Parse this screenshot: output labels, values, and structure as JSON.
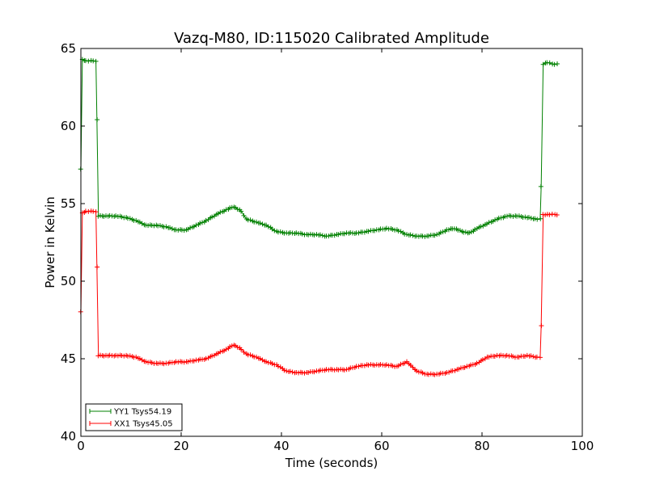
{
  "chart_data": {
    "type": "line",
    "title": "Vazq-M80, ID:115020 Calibrated Amplitude",
    "xlabel": "Time (seconds)",
    "ylabel": "Power in Kelvin",
    "xlim": [
      0,
      100
    ],
    "ylim": [
      40,
      65
    ],
    "xticks": [
      0,
      20,
      40,
      60,
      80,
      100
    ],
    "yticks": [
      40,
      45,
      50,
      55,
      60,
      65
    ],
    "grid": false,
    "legend_position": "lower-left",
    "marker": "+",
    "series": [
      {
        "name": "YY1 Tsys54.19",
        "color": "#008000",
        "points": [
          [
            0,
            57.2
          ],
          [
            0.3,
            64.3
          ],
          [
            1,
            64.2
          ],
          [
            2,
            64.2
          ],
          [
            3,
            64.2
          ],
          [
            3.2,
            60.4
          ],
          [
            3.5,
            54.2
          ],
          [
            5,
            54.2
          ],
          [
            7,
            54.2
          ],
          [
            9,
            54.1
          ],
          [
            11,
            53.9
          ],
          [
            13,
            53.6
          ],
          [
            15,
            53.6
          ],
          [
            17,
            53.5
          ],
          [
            19,
            53.3
          ],
          [
            21,
            53.3
          ],
          [
            23,
            53.6
          ],
          [
            25,
            53.9
          ],
          [
            27,
            54.3
          ],
          [
            29,
            54.6
          ],
          [
            30.5,
            54.8
          ],
          [
            32,
            54.5
          ],
          [
            33,
            54.0
          ],
          [
            35,
            53.8
          ],
          [
            37,
            53.6
          ],
          [
            39,
            53.2
          ],
          [
            41,
            53.1
          ],
          [
            43,
            53.1
          ],
          [
            45,
            53.0
          ],
          [
            47,
            53.0
          ],
          [
            49,
            52.9
          ],
          [
            51,
            53.0
          ],
          [
            53,
            53.1
          ],
          [
            55,
            53.1
          ],
          [
            57,
            53.2
          ],
          [
            59,
            53.3
          ],
          [
            61,
            53.4
          ],
          [
            63,
            53.3
          ],
          [
            65,
            53.0
          ],
          [
            67,
            52.9
          ],
          [
            69,
            52.9
          ],
          [
            71,
            53.0
          ],
          [
            73,
            53.3
          ],
          [
            74.5,
            53.4
          ],
          [
            76,
            53.2
          ],
          [
            77.5,
            53.1
          ],
          [
            79,
            53.4
          ],
          [
            81,
            53.7
          ],
          [
            83,
            54.0
          ],
          [
            85,
            54.2
          ],
          [
            87,
            54.2
          ],
          [
            89,
            54.1
          ],
          [
            91,
            54.0
          ],
          [
            91.6,
            54.0
          ],
          [
            91.8,
            56.1
          ],
          [
            92.2,
            64.0
          ],
          [
            93,
            64.1
          ],
          [
            94,
            64.0
          ],
          [
            95,
            64.0
          ]
        ]
      },
      {
        "name": "XX1 Tsys45.05",
        "color": "#ff0000",
        "points": [
          [
            0,
            48.0
          ],
          [
            0.3,
            54.4
          ],
          [
            1,
            54.5
          ],
          [
            2,
            54.5
          ],
          [
            3,
            54.5
          ],
          [
            3.2,
            50.9
          ],
          [
            3.5,
            45.2
          ],
          [
            5,
            45.2
          ],
          [
            7,
            45.2
          ],
          [
            9,
            45.2
          ],
          [
            11,
            45.1
          ],
          [
            13,
            44.8
          ],
          [
            15,
            44.7
          ],
          [
            17,
            44.7
          ],
          [
            19,
            44.8
          ],
          [
            21,
            44.8
          ],
          [
            23,
            44.9
          ],
          [
            25,
            45.0
          ],
          [
            27,
            45.3
          ],
          [
            29,
            45.6
          ],
          [
            30.5,
            45.9
          ],
          [
            32,
            45.6
          ],
          [
            33,
            45.3
          ],
          [
            35,
            45.1
          ],
          [
            37,
            44.8
          ],
          [
            39,
            44.6
          ],
          [
            41,
            44.2
          ],
          [
            43,
            44.1
          ],
          [
            45,
            44.1
          ],
          [
            47,
            44.2
          ],
          [
            49,
            44.3
          ],
          [
            51,
            44.3
          ],
          [
            53,
            44.3
          ],
          [
            55,
            44.5
          ],
          [
            57,
            44.6
          ],
          [
            59,
            44.6
          ],
          [
            61,
            44.6
          ],
          [
            63,
            44.5
          ],
          [
            65,
            44.8
          ],
          [
            67,
            44.2
          ],
          [
            69,
            44.0
          ],
          [
            71,
            44.0
          ],
          [
            73,
            44.1
          ],
          [
            75,
            44.3
          ],
          [
            77,
            44.5
          ],
          [
            79,
            44.7
          ],
          [
            81,
            45.1
          ],
          [
            83,
            45.2
          ],
          [
            85,
            45.2
          ],
          [
            87,
            45.1
          ],
          [
            89,
            45.2
          ],
          [
            91,
            45.1
          ],
          [
            91.6,
            45.1
          ],
          [
            91.8,
            47.1
          ],
          [
            92.2,
            54.3
          ],
          [
            93,
            54.3
          ],
          [
            94,
            54.3
          ],
          [
            95,
            54.3
          ]
        ]
      }
    ]
  }
}
